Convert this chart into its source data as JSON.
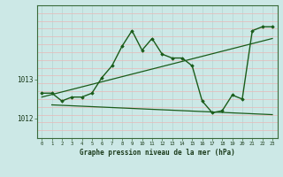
{
  "xlabel": "Graphe pression niveau de la mer (hPa)",
  "bg_color": "#cce8e6",
  "grid_color_v": "#b8d8d6",
  "grid_color_h": "#e8b8b8",
  "line_color": "#1a5c1a",
  "marker_color": "#1a5c1a",
  "hours": [
    0,
    1,
    2,
    3,
    4,
    5,
    6,
    7,
    8,
    9,
    10,
    11,
    12,
    13,
    14,
    15,
    16,
    17,
    18,
    19,
    20,
    21,
    22,
    23
  ],
  "pressure": [
    1012.65,
    1012.65,
    1012.45,
    1012.55,
    1012.55,
    1012.65,
    1013.05,
    1013.35,
    1013.85,
    1014.25,
    1013.75,
    1014.05,
    1013.65,
    1013.55,
    1013.55,
    1013.35,
    1012.45,
    1012.15,
    1012.2,
    1012.6,
    1012.5,
    1014.25,
    1014.35,
    1014.35
  ],
  "trend1_x": [
    0,
    23
  ],
  "trend1_y": [
    1012.55,
    1014.05
  ],
  "trend2_x": [
    1,
    23
  ],
  "trend2_y": [
    1012.35,
    1012.1
  ],
  "ylim_min": 1011.5,
  "ylim_max": 1014.9,
  "yticks": [
    1012,
    1013
  ],
  "xticks": [
    0,
    1,
    2,
    3,
    4,
    5,
    6,
    7,
    8,
    9,
    10,
    11,
    12,
    13,
    14,
    15,
    16,
    17,
    18,
    19,
    20,
    21,
    22,
    23
  ]
}
